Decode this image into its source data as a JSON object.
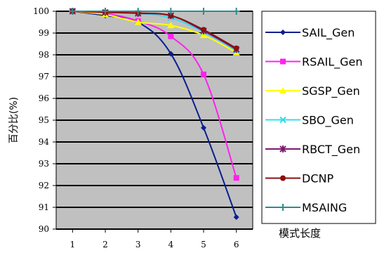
{
  "chart_data": {
    "type": "line",
    "title": "",
    "xlabel": "模式长度",
    "ylabel": "百分比(%)",
    "x": [
      1,
      2,
      3,
      4,
      5,
      6
    ],
    "ylim": [
      90,
      100
    ],
    "yticks": [
      90,
      91,
      92,
      93,
      94,
      95,
      96,
      97,
      98,
      99,
      100
    ],
    "grid": "horizontal",
    "legend_position": "right",
    "plot_background": "#c0c0c0",
    "series": [
      {
        "name": "SAIL_Gen",
        "color": "#0a1f8f",
        "marker": "diamond",
        "values": [
          100,
          99.8,
          99.5,
          98.05,
          94.65,
          90.55
        ]
      },
      {
        "name": "RSAIL_Gen",
        "color": "#ff22ee",
        "marker": "square",
        "values": [
          100,
          99.9,
          99.55,
          98.85,
          97.1,
          92.35
        ]
      },
      {
        "name": "SGSP_Gen",
        "color": "#ffff00",
        "marker": "triangle",
        "values": [
          100,
          99.85,
          99.5,
          99.35,
          98.9,
          98.1
        ]
      },
      {
        "name": "SBO_Gen",
        "color": "#33ddee",
        "marker": "x",
        "values": [
          100,
          99.95,
          99.9,
          99.7,
          99.05,
          98.2
        ]
      },
      {
        "name": "RBCT_Gen",
        "color": "#7a1a6e",
        "marker": "star",
        "values": [
          100,
          99.95,
          99.9,
          99.8,
          99.1,
          98.25
        ]
      },
      {
        "name": "DCNP",
        "color": "#8b1010",
        "marker": "circle",
        "values": [
          100,
          99.95,
          99.92,
          99.8,
          99.15,
          98.3
        ]
      },
      {
        "name": "MSAING",
        "color": "#2e8c8c",
        "marker": "plus",
        "values": [
          100,
          100,
          100,
          100,
          100,
          100
        ]
      }
    ]
  }
}
